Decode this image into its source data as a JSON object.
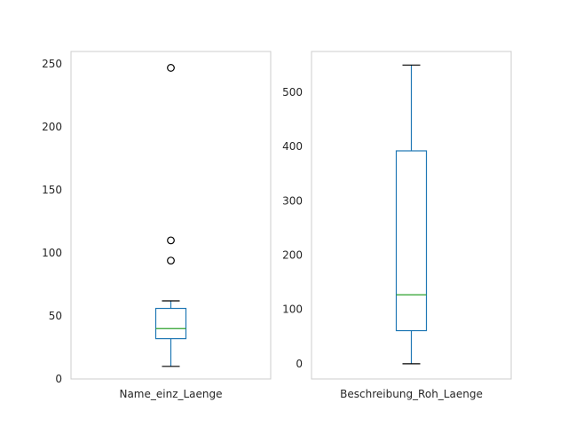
{
  "chart_data": [
    {
      "type": "box",
      "category": "Name_einz_Laenge",
      "ylim": [
        0,
        260
      ],
      "yticks": [
        0,
        50,
        100,
        150,
        200,
        250
      ],
      "grid": false,
      "box": {
        "whisker_low": 10,
        "q1": 32,
        "median": 40,
        "q3": 56,
        "whisker_high": 62
      },
      "outliers": [
        94,
        110,
        247
      ],
      "colors": {
        "box": "#1f77b4",
        "median": "#2ca02c",
        "whisker_cap": "#000000",
        "outlier": "#000000"
      }
    },
    {
      "type": "box",
      "category": "Beschreibung_Roh_Laenge",
      "ylim": [
        -28,
        575
      ],
      "yticks": [
        0,
        100,
        200,
        300,
        400,
        500
      ],
      "grid": false,
      "box": {
        "whisker_low": 0,
        "q1": 61,
        "median": 127,
        "q3": 392,
        "whisker_high": 550
      },
      "outliers": [],
      "colors": {
        "box": "#1f77b4",
        "median": "#2ca02c",
        "whisker_cap": "#000000",
        "outlier": "#000000"
      }
    }
  ]
}
